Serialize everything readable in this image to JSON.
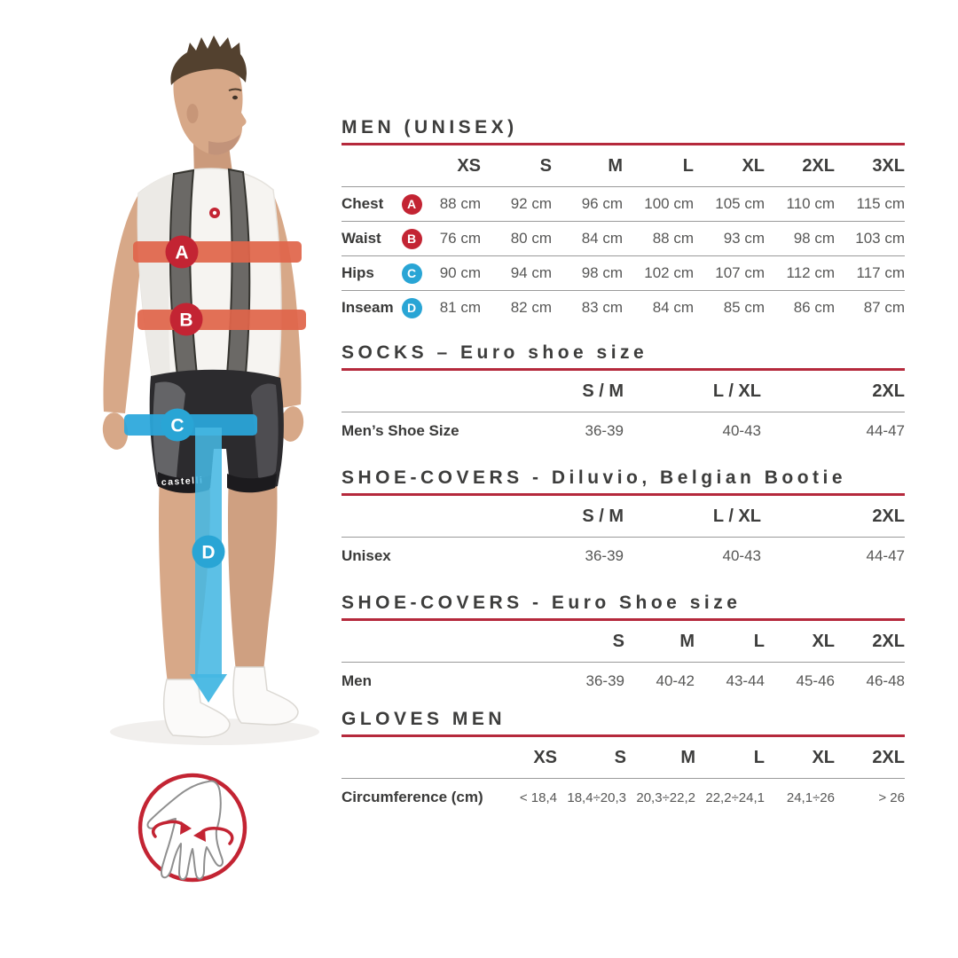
{
  "colors": {
    "accent_red": "#c32433",
    "accent_blue": "#29a5d5",
    "rule_red": "#b5293c",
    "band_orange_red": "#e0654a",
    "band_cyan": "#45b7e3",
    "title_text": "#3d3d3c",
    "value_text": "#575756"
  },
  "figure": {
    "brand_text": "castelli",
    "markers": [
      {
        "letter": "A",
        "color": "#c32433",
        "measures": "Chest"
      },
      {
        "letter": "B",
        "color": "#c32433",
        "measures": "Waist"
      },
      {
        "letter": "C",
        "color": "#29a5d5",
        "measures": "Hips"
      },
      {
        "letter": "D",
        "color": "#29a5d5",
        "measures": "Inseam"
      }
    ]
  },
  "sections": [
    {
      "title": "MEN (UNISEX)",
      "columns": [
        "XS",
        "S",
        "M",
        "L",
        "XL",
        "2XL",
        "3XL"
      ],
      "rows": [
        {
          "label": "Chest",
          "badge": "A",
          "badge_color": "#c32433",
          "values": [
            "88 cm",
            "92 cm",
            "96 cm",
            "100 cm",
            "105 cm",
            "110 cm",
            "115 cm"
          ]
        },
        {
          "label": "Waist",
          "badge": "B",
          "badge_color": "#c32433",
          "values": [
            "76 cm",
            "80 cm",
            "84 cm",
            "88 cm",
            "93 cm",
            "98 cm",
            "103 cm"
          ]
        },
        {
          "label": "Hips",
          "badge": "C",
          "badge_color": "#29a5d5",
          "values": [
            "90 cm",
            "94 cm",
            "98 cm",
            "102 cm",
            "107 cm",
            "112 cm",
            "117 cm"
          ]
        },
        {
          "label": "Inseam",
          "badge": "D",
          "badge_color": "#29a5d5",
          "values": [
            "81 cm",
            "82 cm",
            "83 cm",
            "84 cm",
            "85 cm",
            "86 cm",
            "87 cm"
          ]
        }
      ]
    },
    {
      "title": "SOCKS – Euro shoe size",
      "columns": [
        "S / M",
        "L / XL",
        "2XL"
      ],
      "rows": [
        {
          "label": "Men’s Shoe Size",
          "values": [
            "36-39",
            "40-43",
            "44-47"
          ]
        }
      ]
    },
    {
      "title": "SHOE-COVERS - Diluvio, Belgian Bootie",
      "columns": [
        "S / M",
        "L / XL",
        "2XL"
      ],
      "rows": [
        {
          "label": "Unisex",
          "values": [
            "36-39",
            "40-43",
            "44-47"
          ]
        }
      ]
    },
    {
      "title": "SHOE-COVERS - Euro Shoe size",
      "columns": [
        "S",
        "M",
        "L",
        "XL",
        "2XL"
      ],
      "rows": [
        {
          "label": "Men",
          "values": [
            "36-39",
            "40-42",
            "43-44",
            "45-46",
            "46-48"
          ]
        }
      ]
    },
    {
      "title": "GLOVES MEN",
      "columns": [
        "XS",
        "S",
        "M",
        "L",
        "XL",
        "2XL"
      ],
      "rows": [
        {
          "label": "Circumference (cm)",
          "values": [
            "< 18,4",
            "18,4÷20,3",
            "20,3÷22,2",
            "22,2÷24,1",
            "24,1÷26",
            "> 26"
          ]
        }
      ]
    }
  ]
}
